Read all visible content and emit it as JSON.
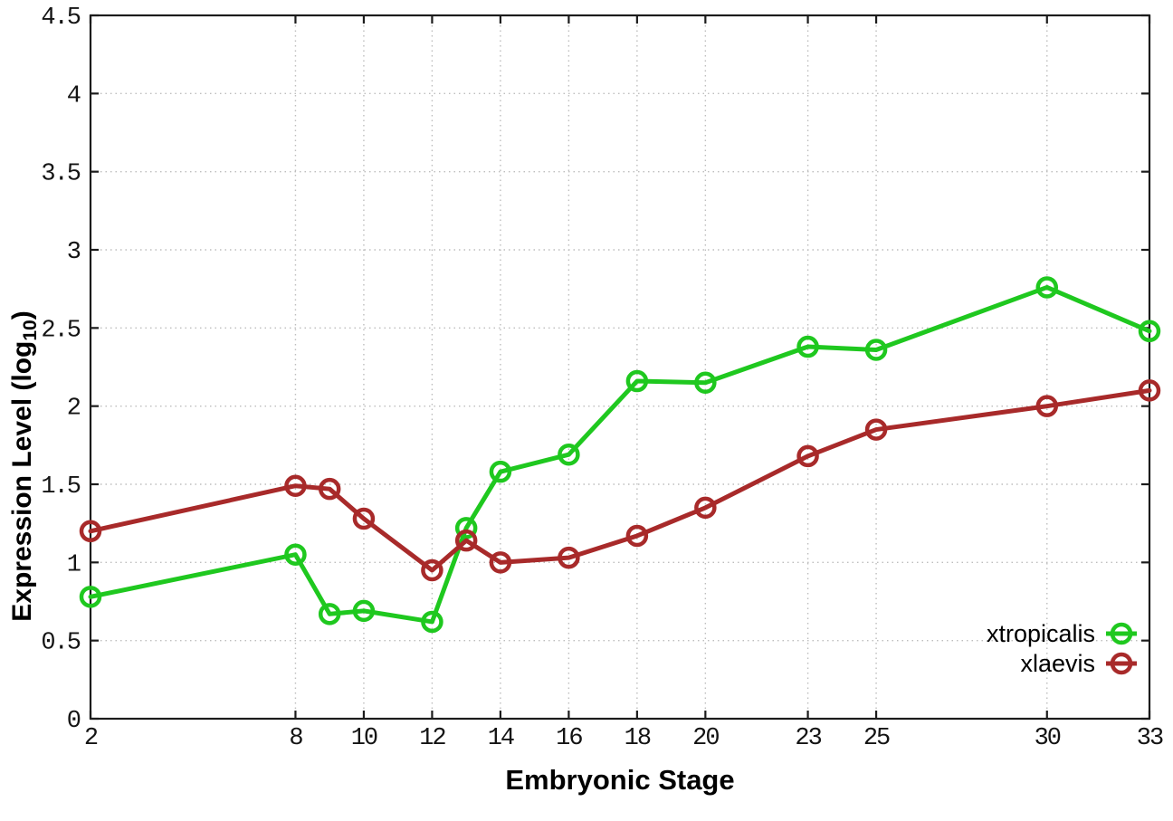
{
  "colors": {
    "background": "#ffffff",
    "axis": "#1c1c1c",
    "grid": "#bdbdbd",
    "text": "#000000",
    "xtropicalis_green": "#1fc81f",
    "xlaevis_red": "#a82a2a"
  },
  "chart_data": {
    "type": "line",
    "title": "",
    "xlabel": "Embryonic Stage",
    "ylabel": "Expression Level (log10)",
    "ylabel_parts": {
      "prefix": "Expression Level (log",
      "sub": "10",
      "suffix": ")"
    },
    "x": [
      2,
      8,
      9,
      10,
      12,
      13,
      14,
      16,
      18,
      20,
      23,
      25,
      30,
      33
    ],
    "series": [
      {
        "name": "xtropicalis",
        "color": "#1fc81f",
        "values": [
          0.78,
          1.05,
          0.67,
          0.69,
          0.62,
          1.22,
          1.58,
          1.69,
          2.16,
          2.15,
          2.38,
          2.36,
          2.76,
          2.48
        ]
      },
      {
        "name": "xlaevis",
        "color": "#a82a2a",
        "values": [
          1.2,
          1.49,
          1.47,
          1.28,
          0.95,
          1.14,
          1.0,
          1.03,
          1.17,
          1.35,
          1.68,
          1.85,
          2.0,
          2.1
        ]
      }
    ],
    "xticks": [
      2,
      8,
      10,
      12,
      14,
      16,
      18,
      20,
      23,
      25,
      30,
      33
    ],
    "yticks": [
      0,
      0.5,
      1,
      1.5,
      2,
      2.5,
      3,
      3.5,
      4,
      4.5
    ],
    "xlim": [
      2,
      33
    ],
    "ylim": [
      0,
      4.5
    ],
    "grid": true,
    "legend_position": "inside-bottom-right",
    "marker": "open-circle"
  }
}
